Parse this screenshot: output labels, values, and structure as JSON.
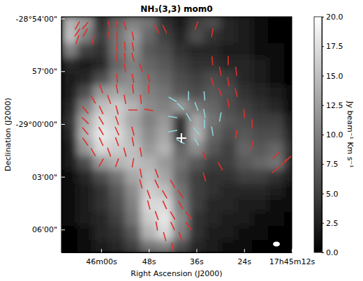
{
  "chart_data": {
    "type": "heatmap",
    "title": "NH₃(3,3) mom0",
    "x_label": "Right Ascension (J2000)",
    "y_label": "Declination (J2000)",
    "xlim": [
      70,
      12
    ],
    "ylim": [
      -7.3,
      6.1
    ],
    "xticks": [
      {
        "value": 60,
        "label": "46m00s"
      },
      {
        "value": 48,
        "label": "48s"
      },
      {
        "value": 36,
        "label": "36s"
      },
      {
        "value": 24,
        "label": "24s"
      },
      {
        "value": 12,
        "label": "17h45m12s"
      }
    ],
    "yticks": [
      {
        "value": 6,
        "label": "-28°54'00\""
      },
      {
        "value": 3,
        "label": "57'00\""
      },
      {
        "value": 0,
        "label": "-29°00'00\""
      },
      {
        "value": -3,
        "label": "03'00\""
      },
      {
        "value": -6,
        "label": "06'00\""
      }
    ],
    "x": [
      68,
      64,
      60,
      56,
      52,
      48,
      44,
      40,
      36,
      32,
      28,
      24,
      20,
      16,
      12
    ],
    "y": [
      5.8,
      5.0,
      4.2,
      3.4,
      2.6,
      1.8,
      1.0,
      0.2,
      -0.6,
      -1.4,
      -2.2,
      -3.0,
      -3.8,
      -4.6,
      -5.4,
      -6.2,
      -7.0
    ],
    "z": [
      [
        14,
        12,
        4,
        8,
        10,
        9,
        4,
        2,
        5,
        6,
        3,
        2,
        1,
        0,
        0
      ],
      [
        15,
        10,
        5,
        9,
        12,
        8,
        5,
        3,
        6,
        4,
        3,
        2,
        1,
        0,
        0
      ],
      [
        10,
        5,
        4,
        9,
        11,
        7,
        6,
        4,
        3,
        3,
        2,
        2,
        1,
        1,
        0
      ],
      [
        3,
        2,
        3,
        8,
        10,
        8,
        7,
        5,
        4,
        4,
        3,
        3,
        2,
        1,
        0
      ],
      [
        2,
        3,
        6,
        10,
        11,
        9,
        8,
        6,
        5,
        6,
        5,
        3,
        2,
        1,
        0
      ],
      [
        2,
        6,
        12,
        13,
        12,
        10,
        9,
        7,
        6,
        7,
        6,
        4,
        3,
        2,
        1
      ],
      [
        3,
        10,
        15,
        16,
        14,
        11,
        10,
        12,
        9,
        8,
        6,
        5,
        4,
        3,
        1
      ],
      [
        4,
        13,
        17,
        16,
        13,
        10,
        12,
        4,
        13,
        9,
        7,
        6,
        5,
        5,
        2
      ],
      [
        3,
        14,
        18,
        17,
        14,
        11,
        13,
        3,
        14,
        8,
        6,
        7,
        6,
        6,
        3
      ],
      [
        2,
        12,
        17,
        16,
        15,
        12,
        14,
        8,
        11,
        7,
        5,
        8,
        7,
        8,
        4
      ],
      [
        2,
        6,
        12,
        14,
        15,
        14,
        12,
        9,
        7,
        5,
        5,
        7,
        8,
        9,
        3
      ],
      [
        1,
        3,
        6,
        9,
        13,
        15,
        13,
        8,
        5,
        4,
        4,
        5,
        5,
        4,
        2
      ],
      [
        1,
        2,
        4,
        7,
        11,
        16,
        15,
        9,
        5,
        4,
        3,
        3,
        3,
        2,
        1
      ],
      [
        1,
        2,
        4,
        6,
        10,
        17,
        17,
        10,
        5,
        3,
        3,
        2,
        2,
        1,
        1
      ],
      [
        1,
        2,
        3,
        5,
        9,
        16,
        18,
        11,
        4,
        3,
        2,
        2,
        1,
        1,
        0
      ],
      [
        0,
        1,
        3,
        4,
        7,
        14,
        17,
        10,
        4,
        2,
        2,
        1,
        1,
        0,
        0
      ],
      [
        0,
        1,
        2,
        3,
        5,
        9,
        10,
        6,
        3,
        2,
        1,
        1,
        0,
        0,
        0
      ]
    ],
    "colorbar": {
      "label": "Jy beam⁻¹ Km s⁻¹",
      "range": [
        0,
        20
      ],
      "ticks": [
        {
          "value": 0,
          "label": "0.0"
        },
        2.5,
        {
          "value": 5,
          "label": "5.0"
        },
        7.5,
        {
          "value": 10,
          "label": "10.0"
        },
        12.5,
        {
          "value": 15,
          "label": "15.0"
        },
        17.5,
        {
          "value": 20,
          "label": "20.0"
        }
      ]
    },
    "vectors": [
      {
        "color": "#e0302a",
        "x": [
          66,
          64,
          66,
          64,
          66,
          62,
          58,
          56,
          54,
          58,
          56,
          52,
          56,
          54,
          52,
          56,
          54,
          52,
          54,
          50,
          46,
          44,
          36,
          32,
          56,
          52,
          48,
          60,
          56,
          52,
          48,
          62,
          58,
          54,
          50,
          64,
          60,
          56,
          52,
          48,
          64,
          60,
          56,
          64,
          60,
          56,
          52,
          64,
          60,
          56,
          52,
          62,
          58,
          54,
          50,
          60,
          56,
          52,
          50,
          46,
          50,
          46,
          42,
          48,
          44,
          40,
          48,
          44,
          40,
          46,
          42,
          38,
          46,
          42,
          38,
          44,
          40,
          42,
          32,
          28,
          30,
          26,
          32,
          28,
          30,
          26,
          28,
          24,
          22,
          26,
          22,
          16,
          14,
          16,
          13,
          34,
          30,
          34
        ],
        "y": [
          5.6,
          5.6,
          5.2,
          5.2,
          4.8,
          4.8,
          5.6,
          5.6,
          5.6,
          5.0,
          5.0,
          5.0,
          4.4,
          4.4,
          4.4,
          3.8,
          3.8,
          3.8,
          3.2,
          3.2,
          5.4,
          5.4,
          5.6,
          5.2,
          2.6,
          2.6,
          2.6,
          2.0,
          2.0,
          2.0,
          2.0,
          1.4,
          1.4,
          1.4,
          1.4,
          0.8,
          0.8,
          0.8,
          0.8,
          0.8,
          0.2,
          0.2,
          0.2,
          -0.4,
          -0.4,
          -0.4,
          -0.4,
          -1.0,
          -1.0,
          -1.0,
          -1.0,
          -1.6,
          -1.6,
          -1.6,
          -1.6,
          -2.2,
          -2.2,
          -2.2,
          -2.8,
          -2.8,
          -3.4,
          -3.4,
          -3.4,
          -4.0,
          -4.0,
          -4.0,
          -4.6,
          -4.6,
          -4.6,
          -5.2,
          -5.2,
          -5.2,
          -5.8,
          -5.8,
          -5.8,
          -6.4,
          -6.4,
          -7.0,
          3.6,
          3.6,
          3.0,
          3.0,
          2.4,
          2.4,
          1.8,
          1.8,
          1.2,
          0.6,
          0.0,
          -0.6,
          -1.2,
          -1.8,
          -2.2,
          -2.6,
          -2.0,
          -1.8,
          -2.4,
          -3.0
        ],
        "angle": [
          150,
          140,
          145,
          150,
          160,
          170,
          10,
          5,
          15,
          5,
          0,
          10,
          175,
          5,
          10,
          0,
          5,
          15,
          10,
          20,
          30,
          25,
          160,
          170,
          5,
          10,
          15,
          20,
          10,
          5,
          0,
          30,
          20,
          10,
          5,
          40,
          25,
          15,
          90,
          80,
          45,
          30,
          20,
          40,
          30,
          25,
          15,
          35,
          25,
          20,
          10,
          30,
          20,
          15,
          10,
          150,
          160,
          170,
          10,
          20,
          15,
          25,
          30,
          20,
          30,
          35,
          15,
          25,
          30,
          20,
          30,
          40,
          10,
          25,
          35,
          15,
          20,
          10,
          5,
          0,
          10,
          5,
          15,
          10,
          20,
          15,
          10,
          5,
          0,
          170,
          165,
          135,
          140,
          130,
          135,
          20,
          30,
          15
        ]
      },
      {
        "color": "#8fd4dc",
        "x": [
          42,
          40,
          36,
          34,
          42,
          38,
          34,
          30,
          42,
          36,
          32,
          40,
          36,
          38,
          34
        ],
        "y": [
          1.4,
          1.0,
          1.0,
          0.6,
          0.4,
          0.4,
          0.0,
          0.4,
          -0.4,
          -0.4,
          -0.4,
          -1.0,
          -1.0,
          1.6,
          1.6
        ],
        "angle": [
          60,
          45,
          20,
          10,
          80,
          30,
          0,
          170,
          100,
          40,
          10,
          60,
          30,
          0,
          5
        ]
      }
    ],
    "cross": {
      "x": 39.8,
      "y": -0.8,
      "color": "#ffffff"
    }
  }
}
